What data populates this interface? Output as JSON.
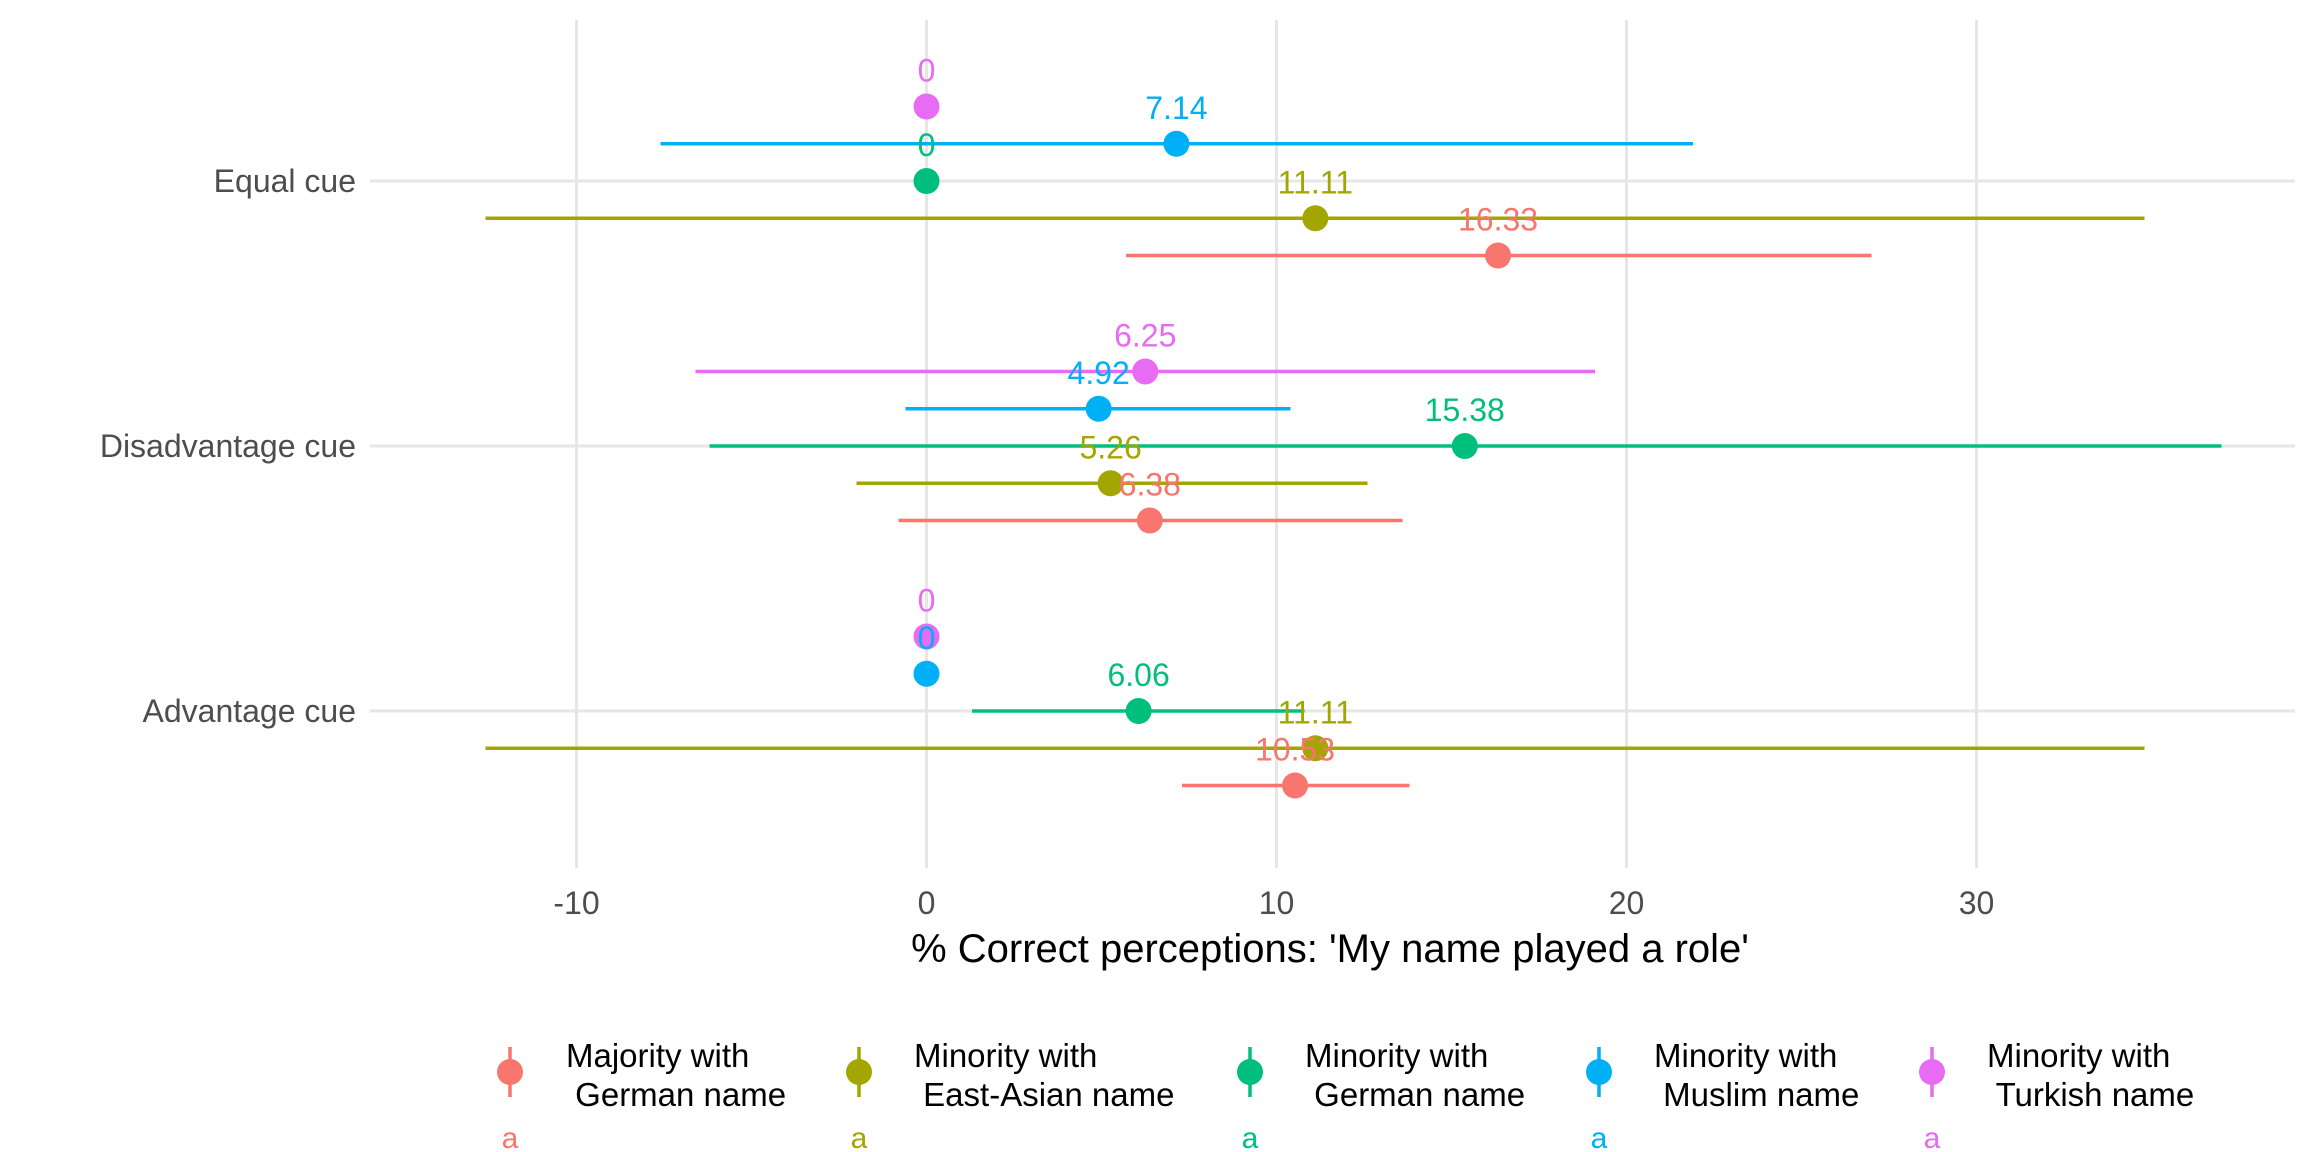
{
  "chart_data": {
    "type": "scatter",
    "title": "",
    "xlabel": "% Correct perceptions: 'My name played a role'",
    "ylabel": "",
    "xlim": [
      -15.9,
      39.1
    ],
    "x_ticks": [
      -10,
      0,
      10,
      20,
      30
    ],
    "x_tick_labels": [
      "-10",
      "0",
      "10",
      "20",
      "30"
    ],
    "categories": [
      "Equal cue",
      "Disadvantage cue",
      "Advantage cue"
    ],
    "grid": true,
    "legend_position": "bottom",
    "series": [
      {
        "name": "Majority with\n German name",
        "legend_lines": [
          "Majority with",
          " German name"
        ],
        "color": "#F8766D",
        "legend_mark": "a",
        "points": [
          {
            "category": "Equal cue",
            "value": 16.33,
            "label": "16.33",
            "ci": [
              5.7,
              27.0
            ]
          },
          {
            "category": "Disadvantage cue",
            "value": 6.38,
            "label": "6.38",
            "ci": [
              -0.8,
              13.6
            ]
          },
          {
            "category": "Advantage cue",
            "value": 10.53,
            "label": "10.53",
            "ci": [
              7.3,
              13.8
            ]
          }
        ]
      },
      {
        "name": "Minority with\n East-Asian name",
        "legend_lines": [
          "Minority with",
          " East-Asian name"
        ],
        "color": "#A3A500",
        "legend_mark": "a",
        "points": [
          {
            "category": "Equal cue",
            "value": 11.11,
            "label": "11.11",
            "ci": [
              -12.6,
              34.8
            ]
          },
          {
            "category": "Disadvantage cue",
            "value": 5.26,
            "label": "5.26",
            "ci": [
              -2.0,
              12.6
            ]
          },
          {
            "category": "Advantage cue",
            "value": 11.11,
            "label": "11.11",
            "ci": [
              -12.6,
              34.8
            ]
          }
        ]
      },
      {
        "name": "Minority with\n German name",
        "legend_lines": [
          "Minority with",
          " German name"
        ],
        "color": "#00BF7D",
        "legend_mark": "a",
        "points": [
          {
            "category": "Equal cue",
            "value": 0,
            "label": "0",
            "ci": null
          },
          {
            "category": "Disadvantage cue",
            "value": 15.38,
            "label": "15.38",
            "ci": [
              -6.2,
              37.0
            ]
          },
          {
            "category": "Advantage cue",
            "value": 6.06,
            "label": "6.06",
            "ci": [
              1.3,
              10.8
            ]
          }
        ]
      },
      {
        "name": "Minority with\n Muslim name",
        "legend_lines": [
          "Minority with",
          " Muslim name"
        ],
        "color": "#00B0F6",
        "legend_mark": "a",
        "points": [
          {
            "category": "Equal cue",
            "value": 7.14,
            "label": "7.14",
            "ci": [
              -7.6,
              21.9
            ]
          },
          {
            "category": "Disadvantage cue",
            "value": 4.92,
            "label": "4.92",
            "ci": [
              -0.6,
              10.4
            ]
          },
          {
            "category": "Advantage cue",
            "value": 0,
            "label": "0",
            "ci": null
          }
        ]
      },
      {
        "name": "Minority with\n Turkish name",
        "legend_lines": [
          "Minority with",
          " Turkish name"
        ],
        "color": "#E76BF3",
        "legend_mark": "a",
        "points": [
          {
            "category": "Equal cue",
            "value": 0,
            "label": "0",
            "ci": null
          },
          {
            "category": "Disadvantage cue",
            "value": 6.25,
            "label": "6.25",
            "ci": [
              -6.6,
              19.1
            ]
          },
          {
            "category": "Advantage cue",
            "value": 0,
            "label": "0",
            "ci": null
          }
        ]
      }
    ]
  }
}
